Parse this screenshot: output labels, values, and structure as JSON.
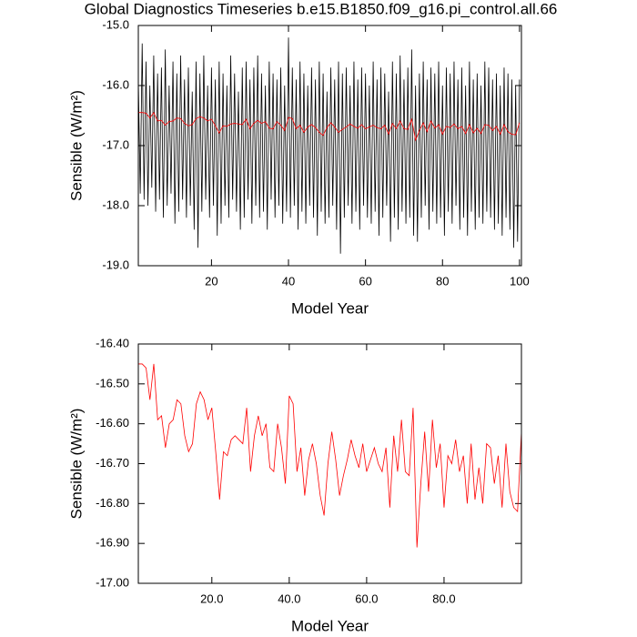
{
  "chart_data": [
    {
      "type": "line",
      "title": "Global Diagnostics Timeseries b.e15.B1850.f09_g16.pi_control.all.66",
      "x_label": "Model Year",
      "y_label": "Sensible (W/m²)",
      "xlim": [
        1,
        100.5
      ],
      "ylim": [
        -19,
        -15
      ],
      "xticks": [
        20,
        40,
        60,
        80,
        100
      ],
      "yticks": [
        {
          "value": -19,
          "label": "-19.0"
        },
        {
          "value": -18,
          "label": "-18.0"
        },
        {
          "value": -17,
          "label": "-17.0"
        },
        {
          "value": -16,
          "label": "-16.0"
        },
        {
          "value": -15,
          "label": "-15.0"
        }
      ],
      "series": [
        {
          "color": "#000000",
          "x": [
            1,
            1.5,
            2,
            2.5,
            3,
            3.5,
            4,
            4.5,
            5,
            5.5,
            6,
            6.5,
            7,
            7.5,
            8,
            8.5,
            9,
            9.5,
            10,
            10.5,
            11,
            11.5,
            12,
            12.5,
            13,
            13.5,
            14,
            14.5,
            15,
            15.5,
            16,
            16.5,
            17,
            17.5,
            18,
            18.5,
            19,
            19.5,
            20,
            20.5,
            21,
            21.5,
            22,
            22.5,
            23,
            23.5,
            24,
            24.5,
            25,
            25.5,
            26,
            26.5,
            27,
            27.5,
            28,
            28.5,
            29,
            29.5,
            30,
            30.5,
            31,
            31.5,
            32,
            32.5,
            33,
            33.5,
            34,
            34.5,
            35,
            35.5,
            36,
            36.5,
            37,
            37.5,
            38,
            38.5,
            39,
            39.5,
            40,
            40.5,
            41,
            41.5,
            42,
            42.5,
            43,
            43.5,
            44,
            44.5,
            45,
            45.5,
            46,
            46.5,
            47,
            47.5,
            48,
            48.5,
            49,
            49.5,
            50,
            50.5,
            51,
            51.5,
            52,
            52.5,
            53,
            53.5,
            54,
            54.5,
            55,
            55.5,
            56,
            56.5,
            57,
            57.5,
            58,
            58.5,
            59,
            59.5,
            60,
            60.5,
            61,
            61.5,
            62,
            62.5,
            63,
            63.5,
            64,
            64.5,
            65,
            65.5,
            66,
            66.5,
            67,
            67.5,
            68,
            68.5,
            69,
            69.5,
            70,
            70.5,
            71,
            71.5,
            72,
            72.5,
            73,
            73.5,
            74,
            74.5,
            75,
            75.5,
            76,
            76.5,
            77,
            77.5,
            78,
            78.5,
            79,
            79.5,
            80,
            80.5,
            81,
            81.5,
            82,
            82.5,
            83,
            83.5,
            84,
            84.5,
            85,
            85.5,
            86,
            86.5,
            87,
            87.5,
            88,
            88.5,
            89,
            89.5,
            90,
            90.5,
            91,
            91.5,
            92,
            92.5,
            93,
            93.5,
            94,
            94.5,
            95,
            95.5,
            96,
            96.5,
            97,
            97.5,
            98,
            98.5,
            99,
            99.5,
            100
          ],
          "values": [
            -15.9,
            -17.8,
            -15.3,
            -17.9,
            -15.6,
            -18.0,
            -16.0,
            -17.7,
            -15.5,
            -18.1,
            -15.8,
            -17.9,
            -15.7,
            -18.2,
            -15.4,
            -18.0,
            -16.0,
            -17.8,
            -15.6,
            -18.3,
            -15.8,
            -18.1,
            -15.5,
            -17.9,
            -15.9,
            -18.2,
            -15.7,
            -18.0,
            -16.1,
            -18.4,
            -15.6,
            -18.7,
            -15.8,
            -18.1,
            -15.5,
            -17.9,
            -16.0,
            -18.2,
            -15.7,
            -18.0,
            -15.9,
            -18.5,
            -15.6,
            -18.3,
            -15.8,
            -18.0,
            -16.0,
            -18.2,
            -15.5,
            -17.9,
            -15.8,
            -18.1,
            -16.1,
            -18.4,
            -15.7,
            -18.2,
            -15.6,
            -17.9,
            -15.9,
            -18.3,
            -15.7,
            -18.0,
            -15.5,
            -18.2,
            -15.8,
            -18.1,
            -16.0,
            -18.4,
            -15.6,
            -17.9,
            -15.8,
            -18.2,
            -15.9,
            -18.0,
            -15.7,
            -18.3,
            -16.0,
            -18.1,
            -15.2,
            -18.2,
            -15.7,
            -18.0,
            -15.9,
            -18.4,
            -15.6,
            -18.1,
            -15.8,
            -18.3,
            -16.0,
            -18.0,
            -15.7,
            -18.2,
            -15.9,
            -18.5,
            -15.6,
            -18.1,
            -15.8,
            -18.3,
            -16.1,
            -18.2,
            -15.7,
            -18.0,
            -15.9,
            -18.4,
            -15.6,
            -18.8,
            -15.8,
            -18.2,
            -15.7,
            -18.0,
            -16.0,
            -18.3,
            -15.6,
            -18.1,
            -15.9,
            -18.4,
            -15.7,
            -18.0,
            -15.8,
            -18.2,
            -16.0,
            -18.3,
            -15.6,
            -18.1,
            -15.9,
            -18.5,
            -15.7,
            -18.2,
            -15.8,
            -18.0,
            -16.1,
            -18.6,
            -15.6,
            -18.2,
            -15.8,
            -18.4,
            -15.5,
            -18.1,
            -15.9,
            -18.3,
            -15.7,
            -18.2,
            -15.4,
            -18.5,
            -16.0,
            -18.6,
            -15.8,
            -18.2,
            -15.6,
            -18.0,
            -15.9,
            -18.4,
            -15.7,
            -18.1,
            -15.8,
            -18.3,
            -15.6,
            -18.2,
            -16.0,
            -18.5,
            -15.7,
            -18.1,
            -15.8,
            -18.3,
            -15.6,
            -18.0,
            -15.9,
            -18.4,
            -15.7,
            -18.2,
            -16.0,
            -18.5,
            -15.6,
            -18.1,
            -15.9,
            -18.4,
            -15.8,
            -18.2,
            -16.0,
            -18.3,
            -15.6,
            -18.1,
            -15.7,
            -18.2,
            -15.9,
            -18.4,
            -15.8,
            -18.3,
            -16.0,
            -18.5,
            -15.7,
            -18.2,
            -15.8,
            -18.4,
            -15.9,
            -18.7,
            -16.0,
            -18.6,
            -15.9
          ]
        },
        {
          "color": "#ff0000",
          "x": [
            1,
            2,
            3,
            4,
            5,
            6,
            7,
            8,
            9,
            10,
            11,
            12,
            13,
            14,
            15,
            16,
            17,
            18,
            19,
            20,
            21,
            22,
            23,
            24,
            25,
            26,
            27,
            28,
            29,
            30,
            31,
            32,
            33,
            34,
            35,
            36,
            37,
            38,
            39,
            40,
            41,
            42,
            43,
            44,
            45,
            46,
            47,
            48,
            49,
            50,
            51,
            52,
            53,
            54,
            55,
            56,
            57,
            58,
            59,
            60,
            61,
            62,
            63,
            64,
            65,
            66,
            67,
            68,
            69,
            70,
            71,
            72,
            73,
            74,
            75,
            76,
            77,
            78,
            79,
            80,
            81,
            82,
            83,
            84,
            85,
            86,
            87,
            88,
            89,
            90,
            91,
            92,
            93,
            94,
            95,
            96,
            97,
            98,
            99,
            100
          ],
          "values": [
            -16.45,
            -16.45,
            -16.46,
            -16.54,
            -16.45,
            -16.59,
            -16.58,
            -16.66,
            -16.6,
            -16.59,
            -16.54,
            -16.55,
            -16.63,
            -16.67,
            -16.65,
            -16.55,
            -16.52,
            -16.54,
            -16.59,
            -16.56,
            -16.67,
            -16.79,
            -16.67,
            -16.68,
            -16.64,
            -16.63,
            -16.64,
            -16.65,
            -16.56,
            -16.72,
            -16.63,
            -16.58,
            -16.63,
            -16.6,
            -16.71,
            -16.72,
            -16.6,
            -16.66,
            -16.75,
            -16.53,
            -16.55,
            -16.72,
            -16.66,
            -16.78,
            -16.69,
            -16.65,
            -16.7,
            -16.78,
            -16.83,
            -16.7,
            -16.62,
            -16.69,
            -16.78,
            -16.73,
            -16.69,
            -16.64,
            -16.68,
            -16.71,
            -16.65,
            -16.72,
            -16.69,
            -16.66,
            -16.7,
            -16.72,
            -16.66,
            -16.81,
            -16.63,
            -16.72,
            -16.59,
            -16.72,
            -16.73,
            -16.56,
            -16.91,
            -16.75,
            -16.62,
            -16.77,
            -16.59,
            -16.71,
            -16.65,
            -16.81,
            -16.68,
            -16.7,
            -16.64,
            -16.72,
            -16.68,
            -16.8,
            -16.65,
            -16.79,
            -16.71,
            -16.8,
            -16.65,
            -16.66,
            -16.75,
            -16.68,
            -16.81,
            -16.65,
            -16.77,
            -16.81,
            -16.82,
            -16.62
          ]
        }
      ]
    },
    {
      "type": "line",
      "x_label": "Model Year",
      "y_label": "Sensible (W/m²)",
      "xlim": [
        1,
        100
      ],
      "ylim": [
        -17,
        -16.4
      ],
      "xticks": [
        {
          "value": 20,
          "label": "20.0"
        },
        {
          "value": 40,
          "label": "40.0"
        },
        {
          "value": 60,
          "label": "60.0"
        },
        {
          "value": 80,
          "label": "80.0"
        }
      ],
      "yticks": [
        {
          "value": -17,
          "label": "-17.00"
        },
        {
          "value": -16.9,
          "label": "-16.90"
        },
        {
          "value": -16.8,
          "label": "-16.80"
        },
        {
          "value": -16.7,
          "label": "-16.70"
        },
        {
          "value": -16.6,
          "label": "-16.60"
        },
        {
          "value": -16.5,
          "label": "-16.50"
        },
        {
          "value": -16.4,
          "label": "-16.40"
        }
      ],
      "series": [
        {
          "color": "#ff0000",
          "x": [
            1,
            2,
            3,
            4,
            5,
            6,
            7,
            8,
            9,
            10,
            11,
            12,
            13,
            14,
            15,
            16,
            17,
            18,
            19,
            20,
            21,
            22,
            23,
            24,
            25,
            26,
            27,
            28,
            29,
            30,
            31,
            32,
            33,
            34,
            35,
            36,
            37,
            38,
            39,
            40,
            41,
            42,
            43,
            44,
            45,
            46,
            47,
            48,
            49,
            50,
            51,
            52,
            53,
            54,
            55,
            56,
            57,
            58,
            59,
            60,
            61,
            62,
            63,
            64,
            65,
            66,
            67,
            68,
            69,
            70,
            71,
            72,
            73,
            74,
            75,
            76,
            77,
            78,
            79,
            80,
            81,
            82,
            83,
            84,
            85,
            86,
            87,
            88,
            89,
            90,
            91,
            92,
            93,
            94,
            95,
            96,
            97,
            98,
            99,
            100
          ],
          "values": [
            -16.45,
            -16.45,
            -16.46,
            -16.54,
            -16.45,
            -16.59,
            -16.58,
            -16.66,
            -16.6,
            -16.59,
            -16.54,
            -16.55,
            -16.63,
            -16.67,
            -16.65,
            -16.55,
            -16.52,
            -16.54,
            -16.59,
            -16.56,
            -16.67,
            -16.79,
            -16.67,
            -16.68,
            -16.64,
            -16.63,
            -16.64,
            -16.65,
            -16.56,
            -16.72,
            -16.63,
            -16.58,
            -16.63,
            -16.6,
            -16.71,
            -16.72,
            -16.6,
            -16.66,
            -16.75,
            -16.53,
            -16.55,
            -16.72,
            -16.66,
            -16.78,
            -16.69,
            -16.65,
            -16.7,
            -16.78,
            -16.83,
            -16.7,
            -16.62,
            -16.69,
            -16.78,
            -16.73,
            -16.69,
            -16.64,
            -16.68,
            -16.71,
            -16.65,
            -16.72,
            -16.69,
            -16.66,
            -16.7,
            -16.72,
            -16.66,
            -16.81,
            -16.63,
            -16.72,
            -16.59,
            -16.72,
            -16.73,
            -16.56,
            -16.91,
            -16.75,
            -16.62,
            -16.77,
            -16.59,
            -16.71,
            -16.65,
            -16.81,
            -16.68,
            -16.7,
            -16.64,
            -16.72,
            -16.68,
            -16.8,
            -16.65,
            -16.79,
            -16.71,
            -16.8,
            -16.65,
            -16.66,
            -16.75,
            -16.68,
            -16.81,
            -16.65,
            -16.77,
            -16.81,
            -16.82,
            -16.62
          ]
        }
      ]
    }
  ]
}
